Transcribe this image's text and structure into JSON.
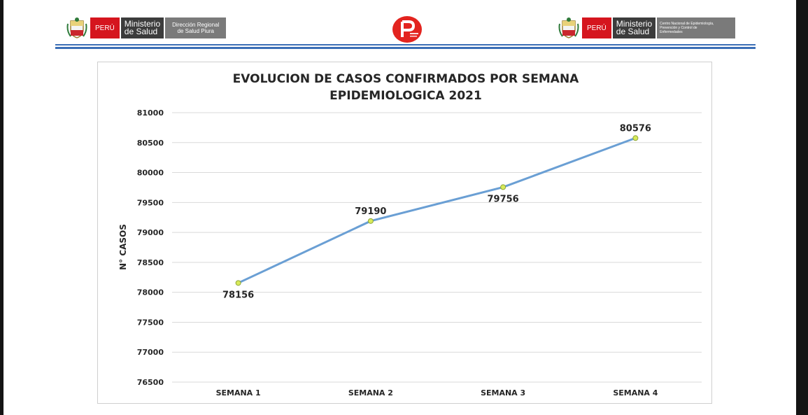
{
  "header": {
    "left_logo": {
      "country": "PERÚ",
      "ministry_line1": "Ministerio",
      "ministry_line2": "de Salud",
      "dept_line1": "Dirección Regional",
      "dept_line2": "de Salud Piura"
    },
    "right_logo": {
      "country": "PERÚ",
      "ministry_line1": "Ministerio",
      "ministry_line2": "de Salud",
      "cdc_line1": "Centro Nacional de Epidemiología,",
      "cdc_line2": "Prevención y Control de",
      "cdc_line3": "Enfermedades"
    },
    "center_logo_icon": "gobierno-regional-logo-icon",
    "brand_red": "#d5151e",
    "rule_color": "#3c6fb6"
  },
  "chart_data": {
    "type": "line",
    "title_line1": "EVOLUCION DE CASOS CONFIRMADOS POR SEMANA",
    "title_line2": "EPIDEMIOLOGICA 2021",
    "xlabel": "",
    "ylabel": "N° CASOS",
    "categories": [
      "SEMANA 1",
      "SEMANA 2",
      "SEMANA 3",
      "SEMANA 4"
    ],
    "series": [
      {
        "values": [
          78156,
          79190,
          79756,
          80576
        ]
      }
    ],
    "data_labels": [
      "78156",
      "79190",
      "79756",
      "80576"
    ],
    "ylim": [
      76500,
      81000
    ],
    "yticks": [
      76500,
      77000,
      77500,
      78000,
      78500,
      79000,
      79500,
      80000,
      80500,
      81000
    ],
    "ytick_labels": [
      "76500",
      "77000",
      "77500",
      "78000",
      "78500",
      "79000",
      "79500",
      "80000",
      "80500",
      "81000"
    ],
    "grid": true,
    "legend": "none",
    "line_color": "#6a9fd4",
    "marker_color": "#d8ea5a"
  }
}
